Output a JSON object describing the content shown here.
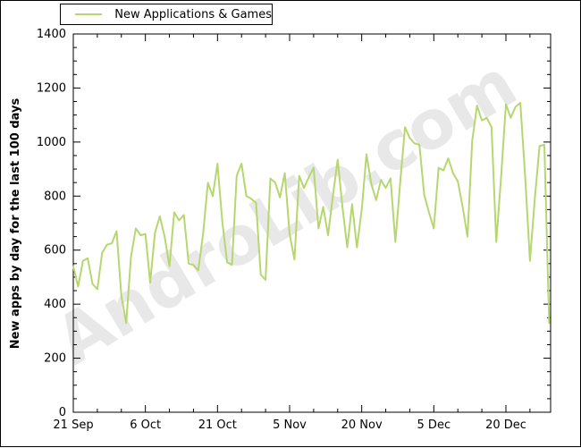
{
  "legend": {
    "label": "New Applications & Games"
  },
  "watermark": {
    "text": "AndroLib.com",
    "color": "#e8e8e8"
  },
  "colors": {
    "line": "#b6d76f",
    "axis": "#000000",
    "background": "#ffffff"
  },
  "chart_data": {
    "type": "line",
    "title": "",
    "ylabel": "New apps by day for the last 100 days",
    "xlabel": "",
    "legend_position": "top-left",
    "grid": false,
    "ylim": [
      0,
      1400
    ],
    "xlim_days": [
      0,
      99.3
    ],
    "y_major_ticks": [
      0,
      200,
      400,
      600,
      800,
      1000,
      1200,
      1400
    ],
    "y_minor_step": 50,
    "x_major_ticks": [
      {
        "day": 0,
        "label": "21 Sep"
      },
      {
        "day": 15,
        "label": "6 Oct"
      },
      {
        "day": 30,
        "label": "21 Oct"
      },
      {
        "day": 45,
        "label": "5 Nov"
      },
      {
        "day": 60,
        "label": "20 Nov"
      },
      {
        "day": 75,
        "label": "5 Dec"
      },
      {
        "day": 90,
        "label": "20 Dec"
      }
    ],
    "x_minor_step_days": 5,
    "series": [
      {
        "name": "New Applications & Games",
        "color": "#b6d76f",
        "x_days": "0..99",
        "values": [
          540,
          465,
          560,
          570,
          475,
          455,
          590,
          620,
          625,
          670,
          430,
          330,
          575,
          680,
          655,
          660,
          480,
          665,
          725,
          650,
          540,
          740,
          710,
          730,
          550,
          545,
          525,
          660,
          850,
          800,
          920,
          705,
          555,
          545,
          875,
          920,
          800,
          790,
          775,
          510,
          490,
          865,
          850,
          795,
          885,
          660,
          565,
          875,
          830,
          870,
          905,
          680,
          760,
          655,
          800,
          935,
          760,
          610,
          770,
          610,
          750,
          955,
          845,
          785,
          860,
          830,
          865,
          630,
          850,
          1055,
          1015,
          995,
          990,
          805,
          740,
          680,
          905,
          895,
          940,
          885,
          855,
          760,
          650,
          1005,
          1135,
          1080,
          1090,
          1055,
          630,
          870,
          1140,
          1090,
          1130,
          1145,
          875,
          560,
          790,
          985,
          990,
          330
        ]
      }
    ]
  }
}
